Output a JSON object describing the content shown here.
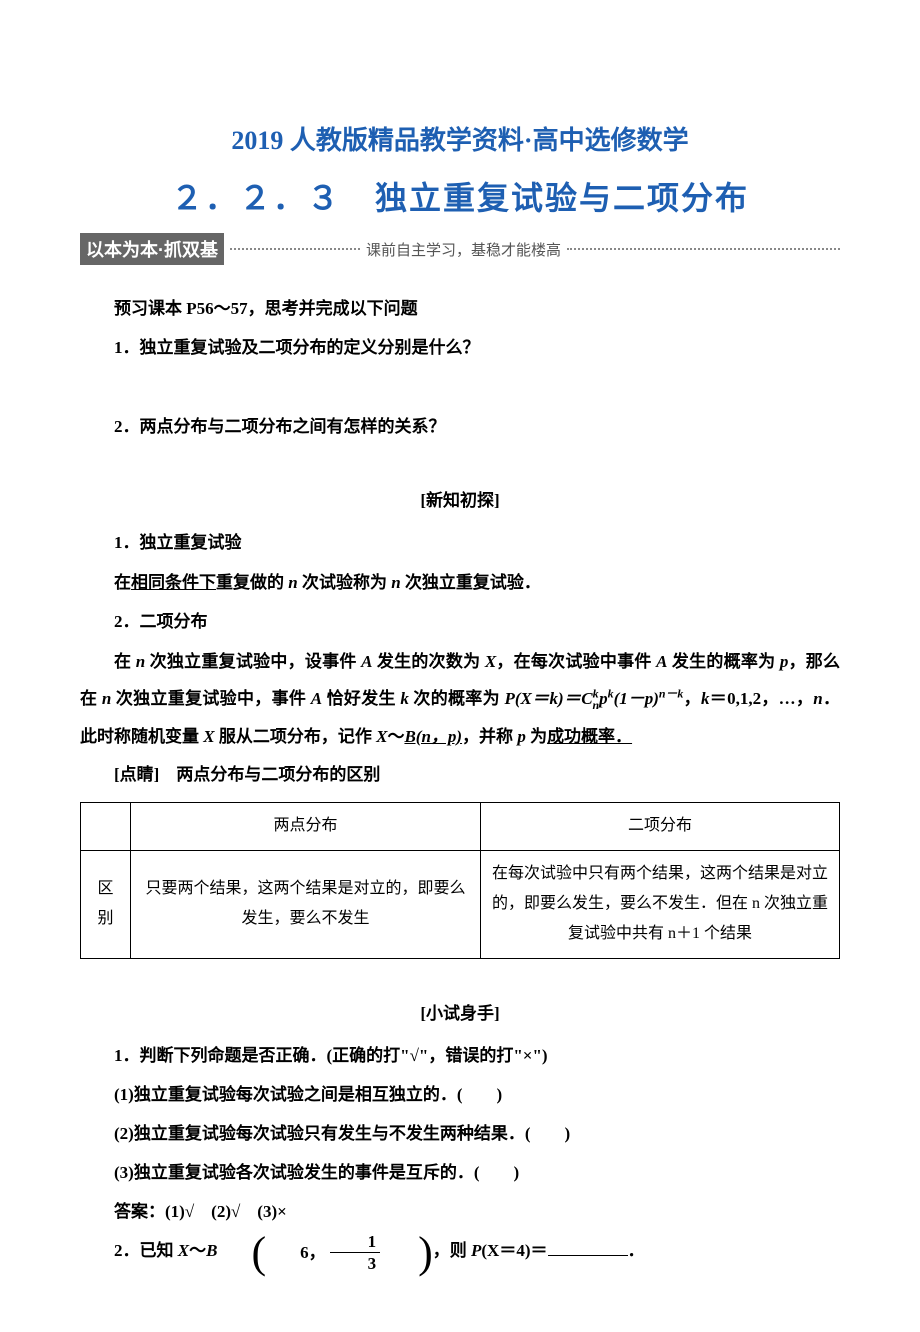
{
  "doc": {
    "header": "2019 人教版精品教学资料·高中选修数学",
    "section_number": "２．２．３　独立重复试验与二项分布",
    "banner": {
      "box": "以本为本·抓双基",
      "tag": "课前自主学习，基稳才能楼高"
    },
    "preview_title": "预习课本 P56～57，思考并完成以下问题",
    "q1": "1．独立重复试验及二项分布的定义分别是什么？",
    "q2": "2．两点分布与二项分布之间有怎样的关系？",
    "new_knowledge": "[新知初探]",
    "h1": "1．独立重复试验",
    "p1_a": "在",
    "p1_u": "相同条件下",
    "p1_b": "重复做的 ",
    "p1_b2": " 次试验称为 ",
    "p1_b3": " 次独立重复试验．",
    "h2": "2．二项分布",
    "p2_line1_a": "在 ",
    "p2_line1_b": " 次独立重复试验中，设事件 ",
    "p2_line1_c": " 发生的次数为 ",
    "p2_line1_d": "，在每次试验中事件 ",
    "p2_line1_e": " 发生的概率为 ",
    "p2_line1_f": "，那么在 ",
    "p2_line1_g": " 次独立重复试验中，事件 ",
    "p2_line1_h": " 恰好发生 ",
    "p2_line1_i": " 次的概率为 ",
    "p2_formula": "P(X＝k)＝C",
    "p2_formula2": "(1－p)",
    "p2_line2_a": "，",
    "p2_line2_b": "＝0,1,2，…，",
    "p2_line2_c": "．此时称随机变量 ",
    "p2_line2_d": " 服从二项分布，记作 ",
    "p2_bn": "B(n，p)",
    "p2_line2_e": "，并称 ",
    "p2_line2_f": " 为",
    "p2_success": "成功概率．",
    "dianjing": "[点睛]　两点分布与二项分布的区别",
    "table": {
      "col1_header": "",
      "col2_header": "两点分布",
      "col3_header": "二项分布",
      "row_label": "区别",
      "cell2": "只要两个结果，这两个结果是对立的，即要么发生，要么不发生",
      "cell3": "在每次试验中只有两个结果，这两个结果是对立的，即要么发生，要么不发生．但在 n 次独立重复试验中共有 n＋1 个结果"
    },
    "tryout": "[小试身手]",
    "t1": "1．判断下列命题是否正确．(正确的打\"√\"，错误的打\"×\")",
    "t1_1": "(1)独立重复试验每次试验之间是相互独立的．(　　)",
    "t1_2": "(2)独立重复试验每次试验只有发生与不发生两种结果．(　　)",
    "t1_3": "(3)独立重复试验各次试验发生的事件是互斥的．(　　)",
    "t1_ans": "答案：(1)√　(2)√　(3)×",
    "t2_a": "2．已知 ",
    "t2_b": "～",
    "t2_c": "6，",
    "t2_d": "，则 ",
    "t2_e": "(X＝4)＝",
    "t2_f": "．",
    "frac_num": "1",
    "frac_den": "3",
    "colors": {
      "blue": "#1e5fb2",
      "gray_box": "#666666"
    }
  }
}
